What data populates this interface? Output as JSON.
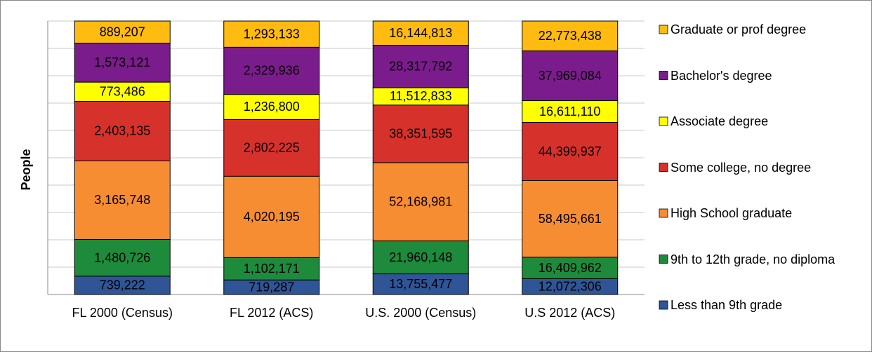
{
  "chart_data": {
    "type": "bar",
    "stacking": "percent",
    "y_label": "People",
    "categories": [
      "FL 2000 (Census)",
      "FL 2012 (ACS)",
      "U.S. 2000 (Census)",
      "U.S 2012 (ACS)"
    ],
    "ylim": [
      0,
      100
    ],
    "yticks": [
      0,
      10,
      20,
      30,
      40,
      50,
      60,
      70,
      80,
      90,
      100
    ],
    "grid": true,
    "series": [
      {
        "name": "Less than 9th grade",
        "color": "#2f5597",
        "values": [
          739222,
          719287,
          13755477,
          12072306
        ],
        "value_labels": [
          "739,222",
          "719,287",
          "13,755,477",
          "12,072,306"
        ]
      },
      {
        "name": "9th to 12th grade, no diploma",
        "color": "#1e8a3c",
        "values": [
          1480726,
          1102171,
          21960148,
          16409962
        ],
        "value_labels": [
          "1,480,726",
          "1,102,171",
          "21,960,148",
          "16,409,962"
        ]
      },
      {
        "name": "High School graduate",
        "color": "#f78d32",
        "values": [
          3165748,
          4020195,
          52168981,
          58495661
        ],
        "value_labels": [
          "3,165,748",
          "4,020,195",
          "52,168,981",
          "58,495,661"
        ]
      },
      {
        "name": "Some college, no degree",
        "color": "#d7312c",
        "values": [
          2403135,
          2802225,
          38351595,
          44399937
        ],
        "value_labels": [
          "2,403,135",
          "2,802,225",
          "38,351,595",
          "44,399,937"
        ]
      },
      {
        "name": "Associate degree",
        "color": "#ffff00",
        "values": [
          773486,
          1236800,
          11512833,
          16611110
        ],
        "value_labels": [
          "773,486",
          "1,236,800",
          "11,512,833",
          "16,611,110"
        ]
      },
      {
        "name": "Bachelor's degree",
        "color": "#7b1c8c",
        "values": [
          1573121,
          2329936,
          28317792,
          37969084
        ],
        "value_labels": [
          "1,573,121",
          "2,329,936",
          "28,317,792",
          "37,969,084"
        ]
      },
      {
        "name": "Graduate or prof degree",
        "color": "#ffbb10",
        "values": [
          889207,
          1293133,
          16144813,
          22773438
        ],
        "value_labels": [
          "889,207",
          "1,293,133",
          "16,144,813",
          "22,773,438"
        ]
      }
    ]
  }
}
